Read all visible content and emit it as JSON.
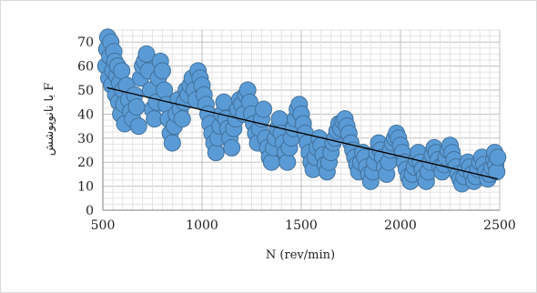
{
  "chart_data": {
    "type": "scatter",
    "title": "",
    "xlabel": "N (rev/min)",
    "ylabel": "F با نانوپوشش",
    "xlim": [
      500,
      2500
    ],
    "ylim": [
      0,
      75
    ],
    "x_ticks": [
      "500",
      "1000",
      "1500",
      "2000",
      "2500"
    ],
    "y_ticks": [
      "0",
      "10",
      "20",
      "30",
      "40",
      "50",
      "60",
      "70"
    ],
    "grid": true,
    "legend": "none",
    "marker_color": "#5b9bd5",
    "marker_edge_color": "#41719c",
    "trendline_color": "#000000",
    "trendline": {
      "type": "linear",
      "x": [
        520,
        2490
      ],
      "y": [
        51,
        13
      ]
    },
    "series": [
      {
        "points": [
          [
            515,
            60
          ],
          [
            520,
            67
          ],
          [
            525,
            72
          ],
          [
            530,
            55
          ],
          [
            535,
            64
          ],
          [
            540,
            70
          ],
          [
            545,
            52
          ],
          [
            550,
            58
          ],
          [
            555,
            66
          ],
          [
            560,
            62
          ],
          [
            565,
            48
          ],
          [
            570,
            56
          ],
          [
            575,
            60
          ],
          [
            580,
            45
          ],
          [
            585,
            53
          ],
          [
            590,
            40
          ],
          [
            595,
            58
          ],
          [
            600,
            50
          ],
          [
            605,
            44
          ],
          [
            610,
            36
          ],
          [
            620,
            52
          ],
          [
            630,
            46
          ],
          [
            640,
            41
          ],
          [
            650,
            38
          ],
          [
            660,
            48
          ],
          [
            670,
            43
          ],
          [
            680,
            35
          ],
          [
            690,
            55
          ],
          [
            700,
            60
          ],
          [
            710,
            62
          ],
          [
            720,
            65
          ],
          [
            730,
            58
          ],
          [
            740,
            50
          ],
          [
            750,
            42
          ],
          [
            760,
            38
          ],
          [
            770,
            45
          ],
          [
            780,
            55
          ],
          [
            790,
            62
          ],
          [
            800,
            58
          ],
          [
            810,
            50
          ],
          [
            820,
            44
          ],
          [
            830,
            38
          ],
          [
            840,
            32
          ],
          [
            850,
            28
          ],
          [
            860,
            35
          ],
          [
            870,
            40
          ],
          [
            880,
            46
          ],
          [
            890,
            42
          ],
          [
            900,
            38
          ],
          [
            910,
            45
          ],
          [
            920,
            50
          ],
          [
            930,
            48
          ],
          [
            940,
            52
          ],
          [
            950,
            55
          ],
          [
            960,
            50
          ],
          [
            970,
            46
          ],
          [
            980,
            58
          ],
          [
            990,
            55
          ],
          [
            1000,
            52
          ],
          [
            1010,
            48
          ],
          [
            1020,
            44
          ],
          [
            1030,
            40
          ],
          [
            1040,
            36
          ],
          [
            1050,
            32
          ],
          [
            1060,
            28
          ],
          [
            1070,
            24
          ],
          [
            1080,
            30
          ],
          [
            1090,
            35
          ],
          [
            1100,
            40
          ],
          [
            1110,
            45
          ],
          [
            1120,
            38
          ],
          [
            1130,
            34
          ],
          [
            1140,
            30
          ],
          [
            1150,
            26
          ],
          [
            1160,
            34
          ],
          [
            1170,
            38
          ],
          [
            1180,
            42
          ],
          [
            1190,
            46
          ],
          [
            1200,
            44
          ],
          [
            1210,
            40
          ],
          [
            1220,
            48
          ],
          [
            1230,
            50
          ],
          [
            1240,
            45
          ],
          [
            1250,
            40
          ],
          [
            1260,
            36
          ],
          [
            1270,
            32
          ],
          [
            1280,
            28
          ],
          [
            1290,
            34
          ],
          [
            1300,
            38
          ],
          [
            1310,
            42
          ],
          [
            1320,
            30
          ],
          [
            1330,
            26
          ],
          [
            1340,
            22
          ],
          [
            1350,
            20
          ],
          [
            1360,
            26
          ],
          [
            1370,
            30
          ],
          [
            1380,
            34
          ],
          [
            1390,
            38
          ],
          [
            1400,
            32
          ],
          [
            1410,
            28
          ],
          [
            1420,
            24
          ],
          [
            1430,
            20
          ],
          [
            1440,
            26
          ],
          [
            1450,
            30
          ],
          [
            1460,
            34
          ],
          [
            1470,
            38
          ],
          [
            1480,
            42
          ],
          [
            1490,
            44
          ],
          [
            1500,
            40
          ],
          [
            1510,
            36
          ],
          [
            1520,
            32
          ],
          [
            1530,
            28
          ],
          [
            1540,
            24
          ],
          [
            1550,
            20
          ],
          [
            1560,
            17
          ],
          [
            1570,
            22
          ],
          [
            1580,
            26
          ],
          [
            1590,
            30
          ],
          [
            1600,
            27
          ],
          [
            1610,
            23
          ],
          [
            1620,
            19
          ],
          [
            1630,
            16
          ],
          [
            1640,
            20
          ],
          [
            1650,
            24
          ],
          [
            1660,
            28
          ],
          [
            1670,
            30
          ],
          [
            1680,
            33
          ],
          [
            1690,
            36
          ],
          [
            1700,
            34
          ],
          [
            1710,
            37
          ],
          [
            1720,
            38
          ],
          [
            1730,
            35
          ],
          [
            1740,
            32
          ],
          [
            1750,
            28
          ],
          [
            1760,
            25
          ],
          [
            1770,
            22
          ],
          [
            1780,
            19
          ],
          [
            1790,
            16
          ],
          [
            1800,
            20
          ],
          [
            1810,
            24
          ],
          [
            1820,
            22
          ],
          [
            1830,
            18
          ],
          [
            1840,
            15
          ],
          [
            1850,
            12
          ],
          [
            1860,
            16
          ],
          [
            1870,
            20
          ],
          [
            1880,
            24
          ],
          [
            1890,
            28
          ],
          [
            1900,
            25
          ],
          [
            1910,
            22
          ],
          [
            1920,
            18
          ],
          [
            1930,
            15
          ],
          [
            1940,
            20
          ],
          [
            1950,
            25
          ],
          [
            1960,
            28
          ],
          [
            1970,
            30
          ],
          [
            1980,
            32
          ],
          [
            1990,
            30
          ],
          [
            2000,
            27
          ],
          [
            2010,
            24
          ],
          [
            2020,
            20
          ],
          [
            2030,
            17
          ],
          [
            2040,
            14
          ],
          [
            2050,
            12
          ],
          [
            2060,
            15
          ],
          [
            2070,
            18
          ],
          [
            2080,
            21
          ],
          [
            2090,
            24
          ],
          [
            2100,
            20
          ],
          [
            2110,
            17
          ],
          [
            2120,
            14
          ],
          [
            2130,
            12
          ],
          [
            2140,
            16
          ],
          [
            2150,
            20
          ],
          [
            2160,
            23
          ],
          [
            2170,
            26
          ],
          [
            2180,
            24
          ],
          [
            2190,
            21
          ],
          [
            2200,
            18
          ],
          [
            2210,
            16
          ],
          [
            2220,
            19
          ],
          [
            2230,
            22
          ],
          [
            2240,
            25
          ],
          [
            2250,
            27
          ],
          [
            2260,
            24
          ],
          [
            2270,
            21
          ],
          [
            2280,
            18
          ],
          [
            2290,
            15
          ],
          [
            2300,
            13
          ],
          [
            2310,
            11
          ],
          [
            2320,
            14
          ],
          [
            2330,
            17
          ],
          [
            2340,
            20
          ],
          [
            2350,
            18
          ],
          [
            2360,
            15
          ],
          [
            2370,
            12
          ],
          [
            2380,
            14
          ],
          [
            2390,
            17
          ],
          [
            2400,
            20
          ],
          [
            2410,
            22
          ],
          [
            2420,
            19
          ],
          [
            2430,
            16
          ],
          [
            2440,
            13
          ],
          [
            2450,
            15
          ],
          [
            2460,
            18
          ],
          [
            2470,
            21
          ],
          [
            2475,
            24
          ],
          [
            2480,
            19
          ],
          [
            2485,
            16
          ],
          [
            2490,
            22
          ]
        ]
      }
    ]
  }
}
